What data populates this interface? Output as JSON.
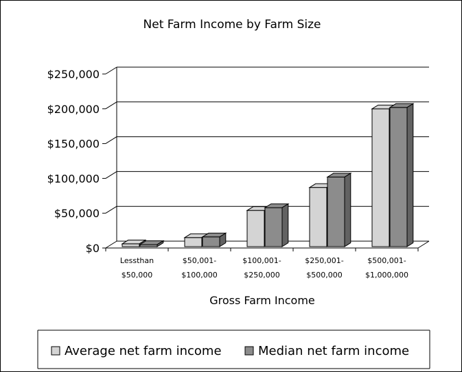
{
  "chart_data": {
    "type": "bar",
    "title": "Net Farm Income by Farm Size",
    "xlabel": "Gross Farm Income",
    "ylabel": "",
    "ylim": [
      0,
      250000
    ],
    "y_ticks": [
      "$0",
      "$50,000",
      "$100,000",
      "$150,000",
      "$200,000",
      "$250,000"
    ],
    "y_tick_values": [
      0,
      50000,
      100000,
      150000,
      200000,
      250000
    ],
    "categories": [
      [
        "Lessthan",
        "$50,000"
      ],
      [
        "$50,001-",
        "$100,000"
      ],
      [
        "$100,001-",
        "$250,000"
      ],
      [
        "$250,001-",
        "$500,000"
      ],
      [
        "$500,001-",
        "$1,000,000"
      ]
    ],
    "series": [
      {
        "name": "Average net farm income",
        "values": [
          4000,
          13000,
          52000,
          85000,
          198000
        ],
        "color": "#d4d4d4"
      },
      {
        "name": "Median net farm income",
        "values": [
          3000,
          14000,
          56000,
          100000,
          200000
        ],
        "color": "#8c8c8c"
      }
    ],
    "grid": true,
    "legend_position": "bottom",
    "style": "3d-column"
  }
}
